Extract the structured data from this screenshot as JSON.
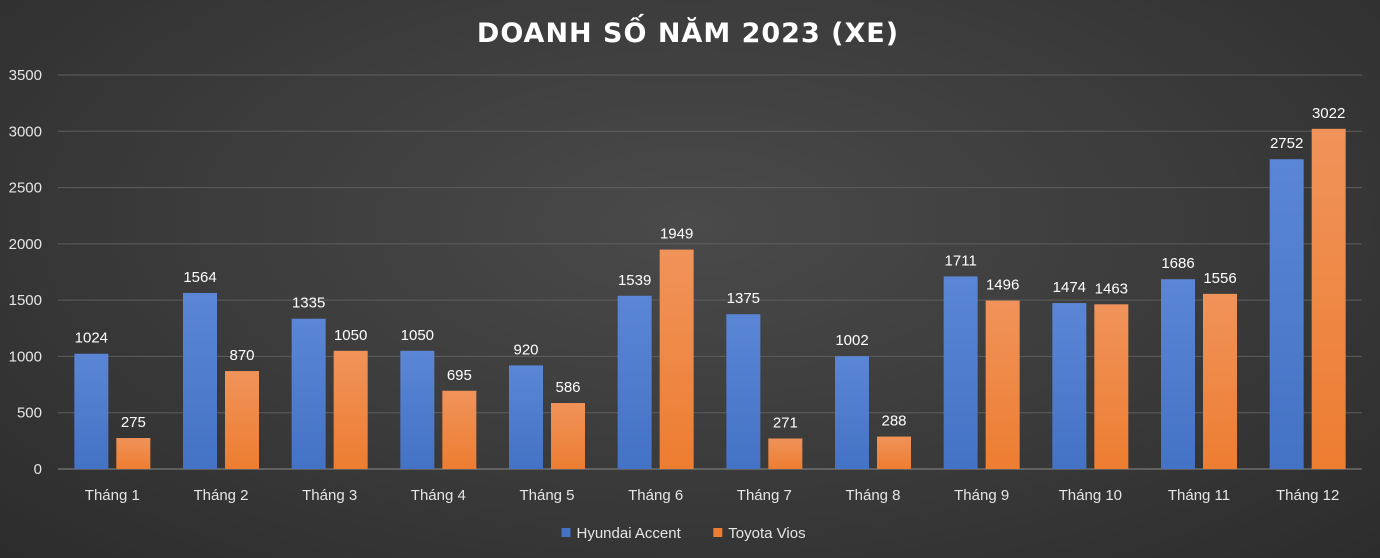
{
  "chart_data": {
    "type": "bar",
    "title": "DOANH SỐ NĂM 2023 (XE)",
    "xlabel": "",
    "ylabel": "",
    "ylim": [
      0,
      3500
    ],
    "yticks": [
      0,
      500,
      1000,
      1500,
      2000,
      2500,
      3000,
      3500
    ],
    "grid": true,
    "legend_position": "bottom",
    "categories": [
      "Tháng 1",
      "Tháng 2",
      "Tháng 3",
      "Tháng 4",
      "Tháng 5",
      "Tháng 6",
      "Tháng 7",
      "Tháng 8",
      "Tháng 9",
      "Tháng 10",
      "Tháng 11",
      "Tháng 12"
    ],
    "series": [
      {
        "name": "Hyundai Accent",
        "color": "#4472c4",
        "values": [
          1024,
          1564,
          1335,
          1050,
          920,
          1539,
          1375,
          1002,
          1711,
          1474,
          1686,
          2752
        ]
      },
      {
        "name": "Toyota Vios",
        "color": "#ed7d31",
        "values": [
          275,
          870,
          1050,
          695,
          586,
          1949,
          271,
          288,
          1496,
          1463,
          1556,
          3022
        ]
      }
    ]
  }
}
